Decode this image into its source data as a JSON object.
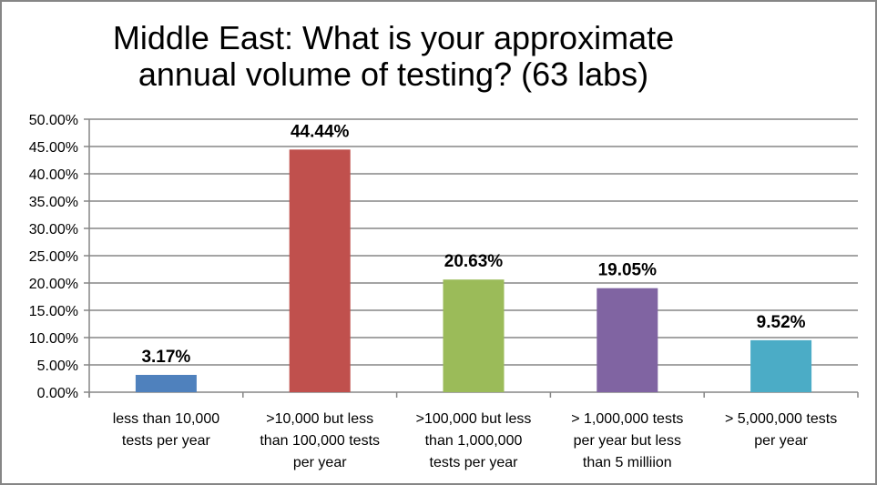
{
  "chart_data": {
    "type": "bar",
    "title_lines": [
      "Middle East: What is your approximate",
      "annual volume of testing? (63 labs)"
    ],
    "categories": [
      [
        "less than 10,000",
        "tests per year"
      ],
      [
        ">10,000 but less",
        "than 100,000 tests",
        "per year"
      ],
      [
        ">100,000 but less",
        "than 1,000,000",
        "tests per year"
      ],
      [
        "> 1,000,000 tests",
        "per year but less",
        "than 5 milliion"
      ],
      [
        "> 5,000,000 tests",
        "per year"
      ]
    ],
    "values": [
      3.17,
      44.44,
      20.63,
      19.05,
      9.52
    ],
    "data_labels": [
      "3.17%",
      "44.44%",
      "20.63%",
      "19.05%",
      "9.52%"
    ],
    "colors": [
      "#4F81BD",
      "#C0504D",
      "#9BBB59",
      "#8064A2",
      "#4BACC6"
    ],
    "ylim": [
      0,
      50
    ],
    "yticks": [
      "0.00%",
      "5.00%",
      "10.00%",
      "15.00%",
      "20.00%",
      "25.00%",
      "30.00%",
      "35.00%",
      "40.00%",
      "45.00%",
      "50.00%"
    ],
    "grid": true,
    "legend": "none"
  }
}
